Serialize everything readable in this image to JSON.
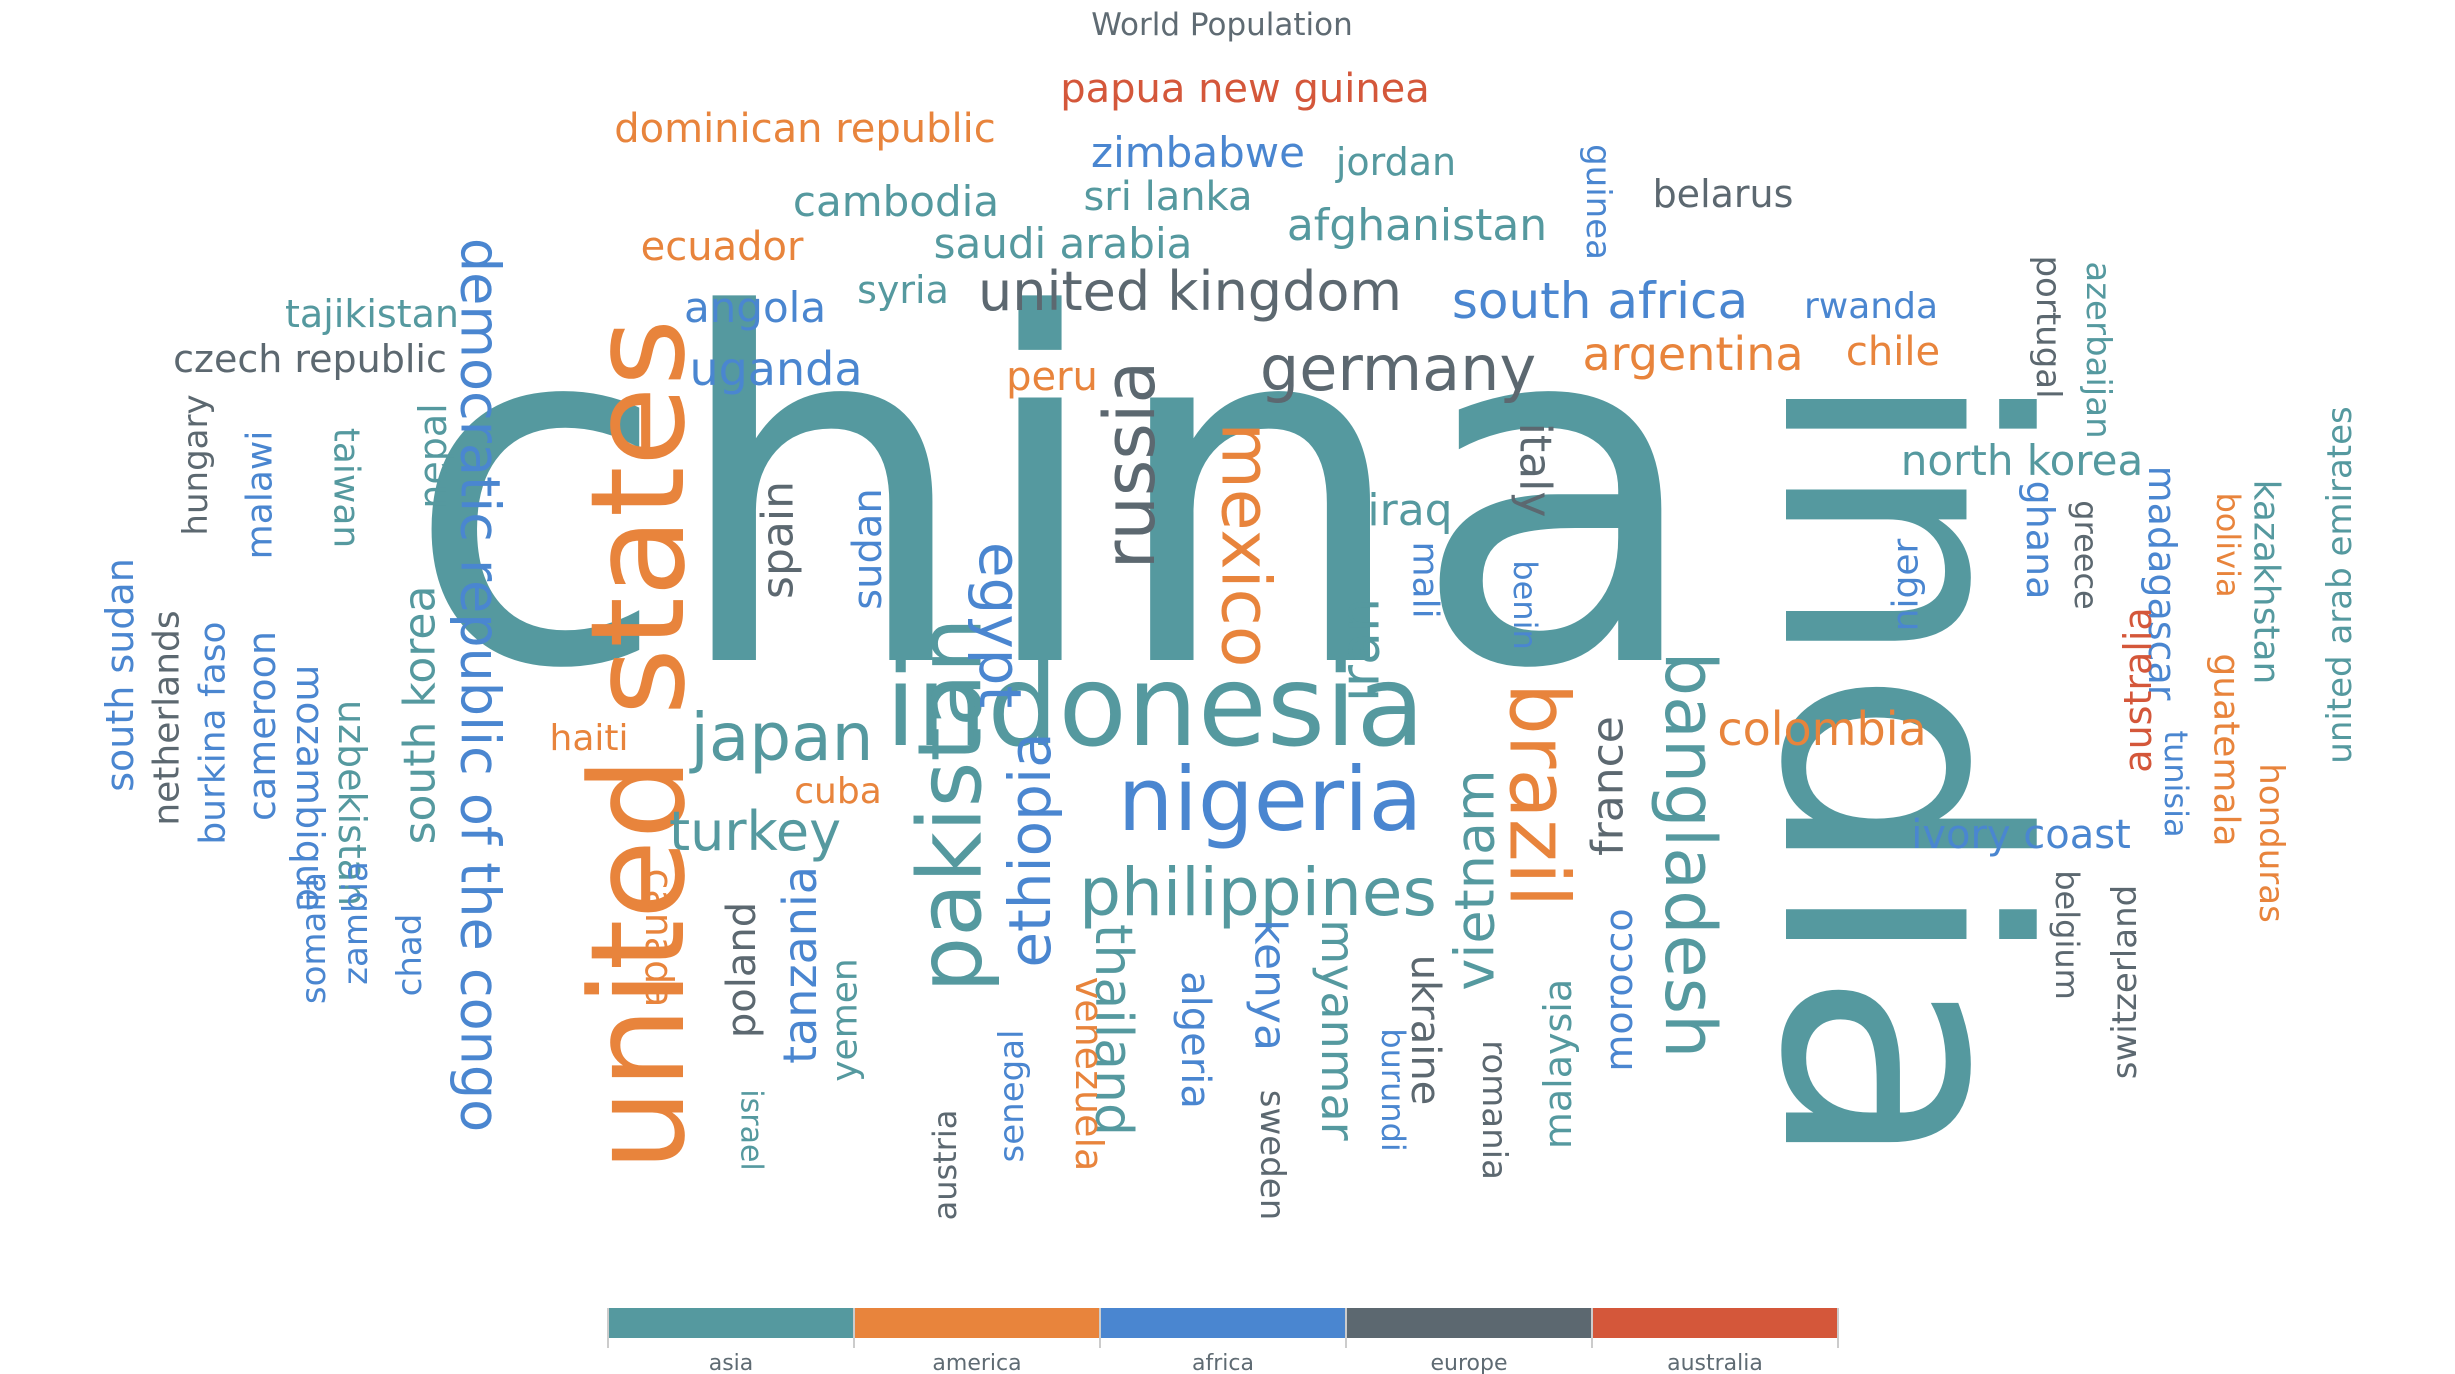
{
  "chart_data": {
    "type": "word-cloud",
    "title": "World Population",
    "legend": {
      "placement": "bottom-center",
      "items": [
        {
          "name": "asia",
          "color": "#55999f"
        },
        {
          "name": "america",
          "color": "#e8843c"
        },
        {
          "name": "africa",
          "color": "#4a86d0"
        },
        {
          "name": "europe",
          "color": "#5c6870"
        },
        {
          "name": "australia",
          "color": "#d4573a"
        }
      ]
    },
    "words": [
      {
        "text": "china",
        "category": "asia",
        "rotate": 0
      },
      {
        "text": "india",
        "category": "asia",
        "rotate": 90
      },
      {
        "text": "united states",
        "category": "america",
        "rotate": -90
      },
      {
        "text": "indonesia",
        "category": "asia",
        "rotate": 0
      },
      {
        "text": "pakistan",
        "category": "asia",
        "rotate": -90
      },
      {
        "text": "brazil",
        "category": "america",
        "rotate": 90
      },
      {
        "text": "nigeria",
        "category": "africa",
        "rotate": 0
      },
      {
        "text": "bangladesh",
        "category": "asia",
        "rotate": 90
      },
      {
        "text": "russia",
        "category": "europe",
        "rotate": -90
      },
      {
        "text": "mexico",
        "category": "america",
        "rotate": 90
      },
      {
        "text": "japan",
        "category": "asia",
        "rotate": 0
      },
      {
        "text": "ethiopia",
        "category": "africa",
        "rotate": -90
      },
      {
        "text": "philippines",
        "category": "asia",
        "rotate": 0
      },
      {
        "text": "egypt",
        "category": "africa",
        "rotate": 90
      },
      {
        "text": "vietnam",
        "category": "asia",
        "rotate": -90
      },
      {
        "text": "democratic republic of the congo",
        "category": "africa",
        "rotate": 90
      },
      {
        "text": "germany",
        "category": "europe",
        "rotate": 0
      },
      {
        "text": "iran",
        "category": "asia",
        "rotate": -90
      },
      {
        "text": "turkey",
        "category": "asia",
        "rotate": 0
      },
      {
        "text": "thailand",
        "category": "asia",
        "rotate": 90
      },
      {
        "text": "united kingdom",
        "category": "europe",
        "rotate": 0
      },
      {
        "text": "france",
        "category": "europe",
        "rotate": -90
      },
      {
        "text": "italy",
        "category": "europe",
        "rotate": 90
      },
      {
        "text": "south africa",
        "category": "africa",
        "rotate": 0
      },
      {
        "text": "tanzania",
        "category": "africa",
        "rotate": -90
      },
      {
        "text": "myanmar",
        "category": "asia",
        "rotate": 90
      },
      {
        "text": "kenya",
        "category": "africa",
        "rotate": 90
      },
      {
        "text": "south korea",
        "category": "asia",
        "rotate": -90
      },
      {
        "text": "colombia",
        "category": "america",
        "rotate": 0
      },
      {
        "text": "spain",
        "category": "europe",
        "rotate": -90
      },
      {
        "text": "uganda",
        "category": "africa",
        "rotate": 0
      },
      {
        "text": "argentina",
        "category": "america",
        "rotate": 0
      },
      {
        "text": "algeria",
        "category": "africa",
        "rotate": 90
      },
      {
        "text": "sudan",
        "category": "africa",
        "rotate": -90
      },
      {
        "text": "ukraine",
        "category": "europe",
        "rotate": 90
      },
      {
        "text": "iraq",
        "category": "asia",
        "rotate": 0
      },
      {
        "text": "afghanistan",
        "category": "asia",
        "rotate": 0
      },
      {
        "text": "poland",
        "category": "europe",
        "rotate": -90
      },
      {
        "text": "canada",
        "category": "america",
        "rotate": 90
      },
      {
        "text": "morocco",
        "category": "africa",
        "rotate": -90
      },
      {
        "text": "saudi arabia",
        "category": "asia",
        "rotate": 0
      },
      {
        "text": "uzbekistan",
        "category": "asia",
        "rotate": 90
      },
      {
        "text": "peru",
        "category": "america",
        "rotate": 0
      },
      {
        "text": "angola",
        "category": "africa",
        "rotate": 0
      },
      {
        "text": "malaysia",
        "category": "asia",
        "rotate": -90
      },
      {
        "text": "mozambique",
        "category": "africa",
        "rotate": 90
      },
      {
        "text": "ghana",
        "category": "africa",
        "rotate": 90
      },
      {
        "text": "yemen",
        "category": "asia",
        "rotate": -90
      },
      {
        "text": "nepal",
        "category": "asia",
        "rotate": -90
      },
      {
        "text": "venezuela",
        "category": "america",
        "rotate": 90
      },
      {
        "text": "madagascar",
        "category": "africa",
        "rotate": 90
      },
      {
        "text": "cameroon",
        "category": "africa",
        "rotate": -90
      },
      {
        "text": "ivory coast",
        "category": "africa",
        "rotate": 0
      },
      {
        "text": "north korea",
        "category": "asia",
        "rotate": 0
      },
      {
        "text": "australia",
        "category": "australia",
        "rotate": -90
      },
      {
        "text": "niger",
        "category": "africa",
        "rotate": -90
      },
      {
        "text": "taiwan",
        "category": "asia",
        "rotate": 90
      },
      {
        "text": "sri lanka",
        "category": "asia",
        "rotate": 0
      },
      {
        "text": "burkina faso",
        "category": "africa",
        "rotate": -90
      },
      {
        "text": "mali",
        "category": "africa",
        "rotate": 90
      },
      {
        "text": "romania",
        "category": "europe",
        "rotate": 90
      },
      {
        "text": "malawi",
        "category": "africa",
        "rotate": -90
      },
      {
        "text": "chile",
        "category": "america",
        "rotate": 0
      },
      {
        "text": "kazakhstan",
        "category": "asia",
        "rotate": 90
      },
      {
        "text": "zambia",
        "category": "africa",
        "rotate": -90
      },
      {
        "text": "guatemala",
        "category": "america",
        "rotate": 90
      },
      {
        "text": "ecuador",
        "category": "america",
        "rotate": 0
      },
      {
        "text": "syria",
        "category": "asia",
        "rotate": 0
      },
      {
        "text": "netherlands",
        "category": "europe",
        "rotate": -90
      },
      {
        "text": "senegal",
        "category": "africa",
        "rotate": -90
      },
      {
        "text": "cambodia",
        "category": "asia",
        "rotate": 0
      },
      {
        "text": "chad",
        "category": "africa",
        "rotate": -90
      },
      {
        "text": "somalia",
        "category": "africa",
        "rotate": -90
      },
      {
        "text": "zimbabwe",
        "category": "africa",
        "rotate": 0
      },
      {
        "text": "guinea",
        "category": "africa",
        "rotate": 90
      },
      {
        "text": "rwanda",
        "category": "africa",
        "rotate": 0
      },
      {
        "text": "benin",
        "category": "africa",
        "rotate": 90
      },
      {
        "text": "burundi",
        "category": "africa",
        "rotate": 90
      },
      {
        "text": "tunisia",
        "category": "africa",
        "rotate": 90
      },
      {
        "text": "bolivia",
        "category": "america",
        "rotate": 90
      },
      {
        "text": "belgium",
        "category": "europe",
        "rotate": 90
      },
      {
        "text": "haiti",
        "category": "america",
        "rotate": 0
      },
      {
        "text": "cuba",
        "category": "america",
        "rotate": 0
      },
      {
        "text": "south sudan",
        "category": "africa",
        "rotate": -90
      },
      {
        "text": "dominican republic",
        "category": "america",
        "rotate": 0
      },
      {
        "text": "czech republic",
        "category": "europe",
        "rotate": 0
      },
      {
        "text": "greece",
        "category": "europe",
        "rotate": 90
      },
      {
        "text": "jordan",
        "category": "asia",
        "rotate": 0
      },
      {
        "text": "portugal",
        "category": "europe",
        "rotate": 90
      },
      {
        "text": "azerbaijan",
        "category": "asia",
        "rotate": 90
      },
      {
        "text": "sweden",
        "category": "europe",
        "rotate": 90
      },
      {
        "text": "honduras",
        "category": "america",
        "rotate": 90
      },
      {
        "text": "united arab emirates",
        "category": "asia",
        "rotate": -90
      },
      {
        "text": "hungary",
        "category": "europe",
        "rotate": -90
      },
      {
        "text": "tajikistan",
        "category": "asia",
        "rotate": 0
      },
      {
        "text": "belarus",
        "category": "europe",
        "rotate": 0
      },
      {
        "text": "austria",
        "category": "europe",
        "rotate": -90
      },
      {
        "text": "papua new guinea",
        "category": "australia",
        "rotate": 0
      },
      {
        "text": "israel",
        "category": "asia",
        "rotate": 90
      },
      {
        "text": "switzerland",
        "category": "europe",
        "rotate": -90
      }
    ]
  }
}
